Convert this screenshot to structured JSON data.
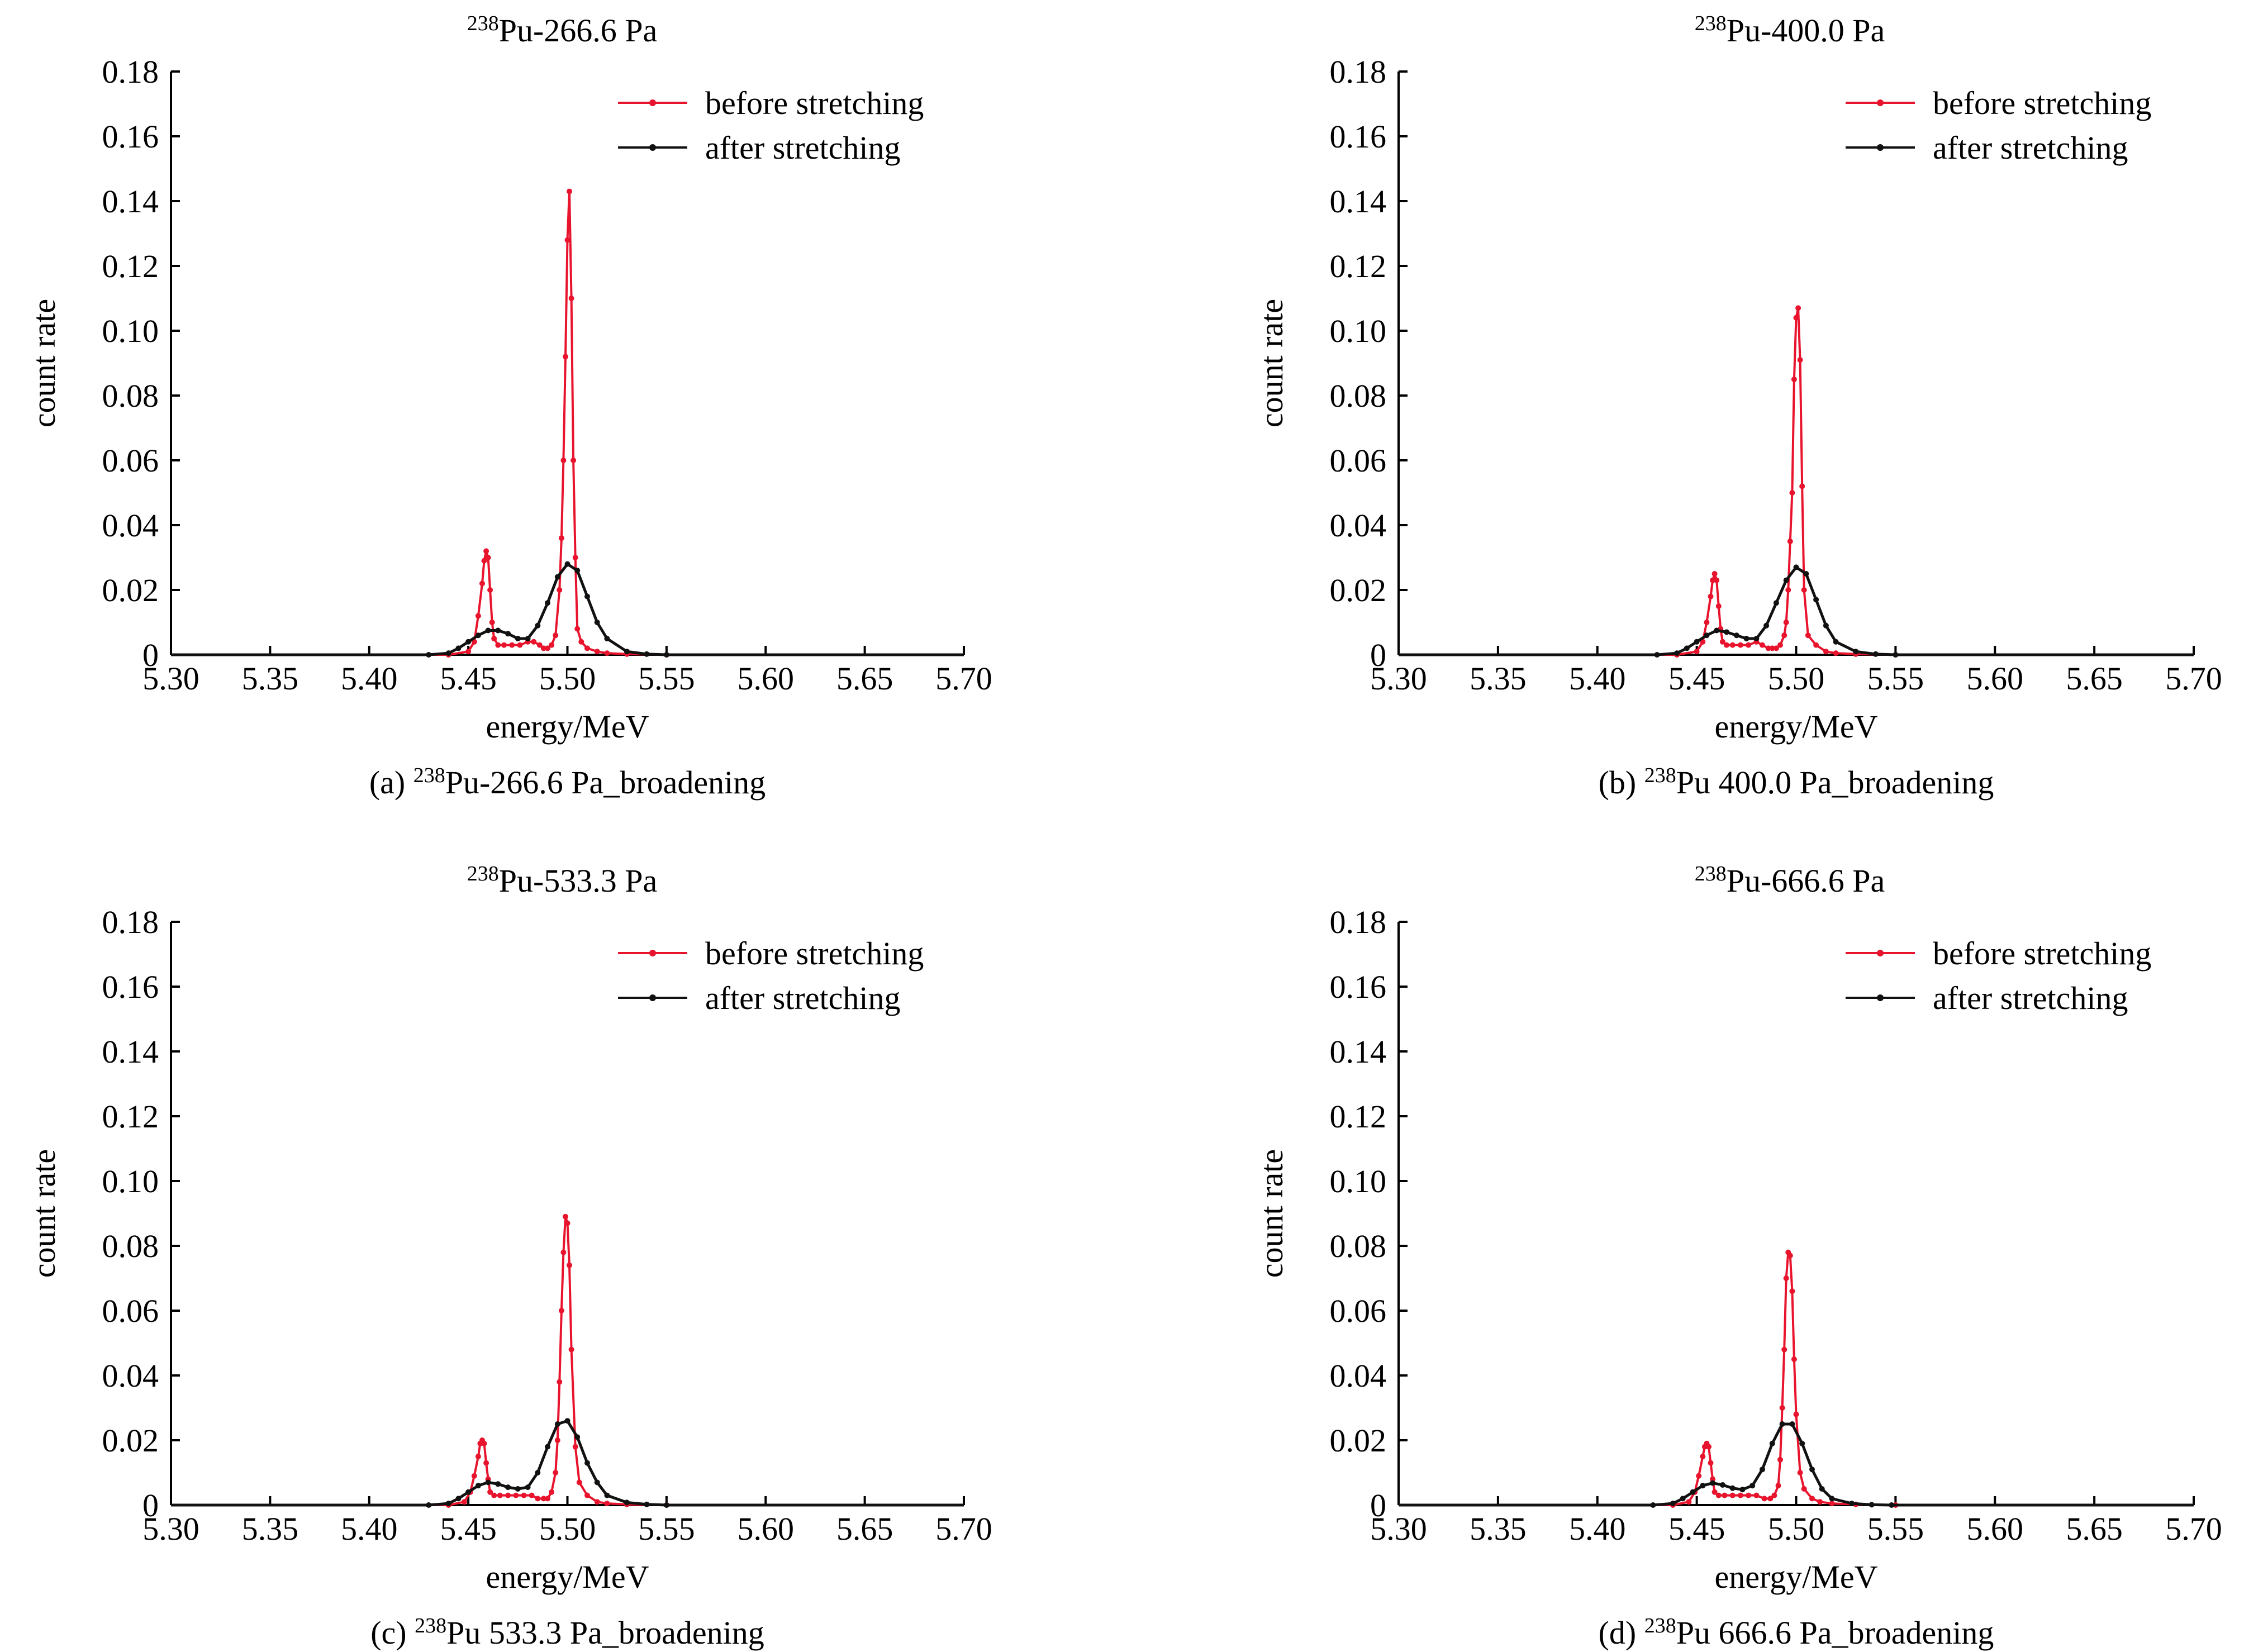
{
  "colors": {
    "before": "#e8132c",
    "after": "#111111",
    "axis": "#000000"
  },
  "chart_data": [
    {
      "type": "line",
      "panel": "a",
      "title_sup": "238",
      "title": "Pu-266.6 Pa",
      "caption_prefix": "(a) ",
      "caption_sup": "238",
      "caption": "Pu-266.6 Pa_broadening",
      "xlabel": "energy/MeV",
      "ylabel": "count rate",
      "xlim": [
        5.3,
        5.7
      ],
      "ylim": [
        0,
        0.18
      ],
      "xticks": [
        "5.30",
        "5.35",
        "5.40",
        "5.45",
        "5.50",
        "5.55",
        "5.60",
        "5.65",
        "5.70"
      ],
      "yticks": [
        "0",
        "0.02",
        "0.04",
        "0.06",
        "0.08",
        "0.10",
        "0.12",
        "0.14",
        "0.16",
        "0.18"
      ],
      "legend_position": "top-right",
      "grid": false,
      "series": [
        {
          "name": "before stretching",
          "x": [
            5.44,
            5.45,
            5.453,
            5.455,
            5.457,
            5.458,
            5.459,
            5.46,
            5.461,
            5.462,
            5.463,
            5.465,
            5.468,
            5.472,
            5.476,
            5.48,
            5.483,
            5.486,
            5.488,
            5.49,
            5.492,
            5.494,
            5.496,
            5.497,
            5.498,
            5.499,
            5.5,
            5.501,
            5.502,
            5.503,
            5.504,
            5.505,
            5.507,
            5.51,
            5.515,
            5.52,
            5.53,
            5.55
          ],
          "y": [
            0.0,
            0.001,
            0.004,
            0.012,
            0.022,
            0.029,
            0.032,
            0.03,
            0.02,
            0.01,
            0.005,
            0.003,
            0.003,
            0.003,
            0.003,
            0.004,
            0.004,
            0.003,
            0.002,
            0.002,
            0.003,
            0.006,
            0.02,
            0.036,
            0.06,
            0.092,
            0.128,
            0.143,
            0.11,
            0.06,
            0.03,
            0.008,
            0.004,
            0.002,
            0.001,
            0.0005,
            0.0002,
            0.0
          ]
        },
        {
          "name": "after stretching",
          "x": [
            5.43,
            5.44,
            5.445,
            5.45,
            5.455,
            5.46,
            5.465,
            5.47,
            5.475,
            5.48,
            5.485,
            5.49,
            5.495,
            5.5,
            5.505,
            5.51,
            5.515,
            5.52,
            5.53,
            5.54,
            5.55
          ],
          "y": [
            0.0,
            0.0005,
            0.002,
            0.004,
            0.006,
            0.0075,
            0.0075,
            0.0065,
            0.005,
            0.005,
            0.009,
            0.016,
            0.024,
            0.028,
            0.026,
            0.018,
            0.01,
            0.005,
            0.001,
            0.0002,
            0.0
          ]
        }
      ]
    },
    {
      "type": "line",
      "panel": "b",
      "title_sup": "238",
      "title": "Pu-400.0 Pa",
      "caption_prefix": "(b) ",
      "caption_sup": "238",
      "caption": "Pu 400.0 Pa_broadening",
      "xlabel": "energy/MeV",
      "ylabel": "count rate",
      "xlim": [
        5.3,
        5.7
      ],
      "ylim": [
        0,
        0.18
      ],
      "xticks": [
        "5.30",
        "5.35",
        "5.40",
        "5.45",
        "5.50",
        "5.55",
        "5.60",
        "5.65",
        "5.70"
      ],
      "yticks": [
        "0",
        "0.02",
        "0.04",
        "0.06",
        "0.08",
        "0.10",
        "0.12",
        "0.14",
        "0.16",
        "0.18"
      ],
      "legend_position": "top-right",
      "grid": false,
      "series": [
        {
          "name": "before stretching",
          "x": [
            5.44,
            5.45,
            5.453,
            5.455,
            5.457,
            5.458,
            5.459,
            5.46,
            5.461,
            5.462,
            5.463,
            5.465,
            5.468,
            5.472,
            5.476,
            5.48,
            5.483,
            5.486,
            5.488,
            5.49,
            5.492,
            5.494,
            5.495,
            5.496,
            5.497,
            5.498,
            5.499,
            5.5,
            5.501,
            5.502,
            5.503,
            5.504,
            5.506,
            5.51,
            5.515,
            5.52,
            5.53,
            5.55
          ],
          "y": [
            0.0,
            0.001,
            0.004,
            0.01,
            0.018,
            0.023,
            0.025,
            0.023,
            0.015,
            0.008,
            0.004,
            0.003,
            0.003,
            0.003,
            0.003,
            0.004,
            0.003,
            0.002,
            0.002,
            0.002,
            0.003,
            0.006,
            0.01,
            0.02,
            0.035,
            0.05,
            0.085,
            0.104,
            0.107,
            0.091,
            0.052,
            0.02,
            0.006,
            0.003,
            0.001,
            0.0005,
            0.0002,
            0.0
          ]
        },
        {
          "name": "after stretching",
          "x": [
            5.43,
            5.44,
            5.445,
            5.45,
            5.455,
            5.46,
            5.465,
            5.47,
            5.475,
            5.48,
            5.485,
            5.49,
            5.495,
            5.5,
            5.505,
            5.51,
            5.515,
            5.52,
            5.53,
            5.54,
            5.55
          ],
          "y": [
            0.0,
            0.0005,
            0.002,
            0.004,
            0.006,
            0.0075,
            0.007,
            0.006,
            0.005,
            0.005,
            0.009,
            0.016,
            0.023,
            0.027,
            0.025,
            0.017,
            0.009,
            0.004,
            0.001,
            0.0002,
            0.0
          ]
        }
      ]
    },
    {
      "type": "line",
      "panel": "c",
      "title_sup": "238",
      "title": "Pu-533.3 Pa",
      "caption_prefix": "(c) ",
      "caption_sup": "238",
      "caption": "Pu 533.3 Pa_broadening",
      "xlabel": "energy/MeV",
      "ylabel": "count rate",
      "xlim": [
        5.3,
        5.7
      ],
      "ylim": [
        0,
        0.18
      ],
      "xticks": [
        "5.30",
        "5.35",
        "5.40",
        "5.45",
        "5.50",
        "5.55",
        "5.60",
        "5.65",
        "5.70"
      ],
      "yticks": [
        "0",
        "0.02",
        "0.04",
        "0.06",
        "0.08",
        "0.10",
        "0.12",
        "0.14",
        "0.16",
        "0.18"
      ],
      "legend_position": "top-right",
      "grid": false,
      "series": [
        {
          "name": "before stretching",
          "x": [
            5.44,
            5.448,
            5.451,
            5.453,
            5.455,
            5.456,
            5.457,
            5.458,
            5.459,
            5.46,
            5.461,
            5.463,
            5.466,
            5.47,
            5.474,
            5.478,
            5.482,
            5.485,
            5.488,
            5.49,
            5.492,
            5.494,
            5.495,
            5.496,
            5.497,
            5.498,
            5.499,
            5.5,
            5.501,
            5.502,
            5.504,
            5.506,
            5.51,
            5.515,
            5.52,
            5.53,
            5.55
          ],
          "y": [
            0.0,
            0.001,
            0.004,
            0.009,
            0.015,
            0.019,
            0.02,
            0.019,
            0.013,
            0.008,
            0.004,
            0.003,
            0.003,
            0.003,
            0.003,
            0.003,
            0.003,
            0.002,
            0.002,
            0.002,
            0.004,
            0.01,
            0.02,
            0.038,
            0.06,
            0.078,
            0.089,
            0.087,
            0.074,
            0.048,
            0.018,
            0.007,
            0.003,
            0.001,
            0.0005,
            0.0002,
            0.0
          ]
        },
        {
          "name": "after stretching",
          "x": [
            5.43,
            5.44,
            5.445,
            5.45,
            5.455,
            5.46,
            5.465,
            5.47,
            5.475,
            5.48,
            5.485,
            5.49,
            5.495,
            5.5,
            5.505,
            5.51,
            5.515,
            5.52,
            5.53,
            5.54,
            5.55
          ],
          "y": [
            0.0,
            0.0005,
            0.002,
            0.004,
            0.006,
            0.007,
            0.0065,
            0.0055,
            0.005,
            0.0055,
            0.01,
            0.018,
            0.025,
            0.026,
            0.021,
            0.013,
            0.007,
            0.003,
            0.0008,
            0.0002,
            0.0
          ]
        }
      ]
    },
    {
      "type": "line",
      "panel": "d",
      "title_sup": "238",
      "title": "Pu-666.6 Pa",
      "caption_prefix": "(d) ",
      "caption_sup": "238",
      "caption": "Pu 666.6 Pa_broadening",
      "xlabel": "energy/MeV",
      "ylabel": "count rate",
      "xlim": [
        5.3,
        5.7
      ],
      "ylim": [
        0,
        0.18
      ],
      "xticks": [
        "5.30",
        "5.35",
        "5.40",
        "5.45",
        "5.50",
        "5.55",
        "5.60",
        "5.65",
        "5.70"
      ],
      "yticks": [
        "0",
        "0.02",
        "0.04",
        "0.06",
        "0.08",
        "0.10",
        "0.12",
        "0.14",
        "0.16",
        "0.18"
      ],
      "legend_position": "top-right",
      "grid": false,
      "series": [
        {
          "name": "before stretching",
          "x": [
            5.438,
            5.446,
            5.449,
            5.451,
            5.453,
            5.454,
            5.455,
            5.456,
            5.457,
            5.458,
            5.459,
            5.461,
            5.464,
            5.468,
            5.472,
            5.476,
            5.48,
            5.484,
            5.487,
            5.489,
            5.491,
            5.492,
            5.493,
            5.494,
            5.495,
            5.496,
            5.497,
            5.498,
            5.499,
            5.5,
            5.502,
            5.504,
            5.508,
            5.512,
            5.518,
            5.53,
            5.55
          ],
          "y": [
            0.0,
            0.001,
            0.004,
            0.009,
            0.015,
            0.018,
            0.019,
            0.018,
            0.013,
            0.008,
            0.004,
            0.003,
            0.003,
            0.003,
            0.003,
            0.003,
            0.003,
            0.002,
            0.002,
            0.003,
            0.006,
            0.014,
            0.03,
            0.048,
            0.07,
            0.078,
            0.077,
            0.066,
            0.045,
            0.028,
            0.01,
            0.005,
            0.002,
            0.001,
            0.0005,
            0.0002,
            0.0
          ]
        },
        {
          "name": "after stretching",
          "x": [
            5.428,
            5.438,
            5.443,
            5.448,
            5.453,
            5.458,
            5.463,
            5.468,
            5.473,
            5.478,
            5.483,
            5.488,
            5.493,
            5.498,
            5.503,
            5.508,
            5.513,
            5.518,
            5.528,
            5.538,
            5.548
          ],
          "y": [
            0.0,
            0.0005,
            0.002,
            0.004,
            0.006,
            0.0068,
            0.0062,
            0.0052,
            0.0048,
            0.006,
            0.011,
            0.019,
            0.025,
            0.025,
            0.019,
            0.011,
            0.005,
            0.002,
            0.0005,
            0.0001,
            0.0
          ]
        }
      ]
    }
  ]
}
